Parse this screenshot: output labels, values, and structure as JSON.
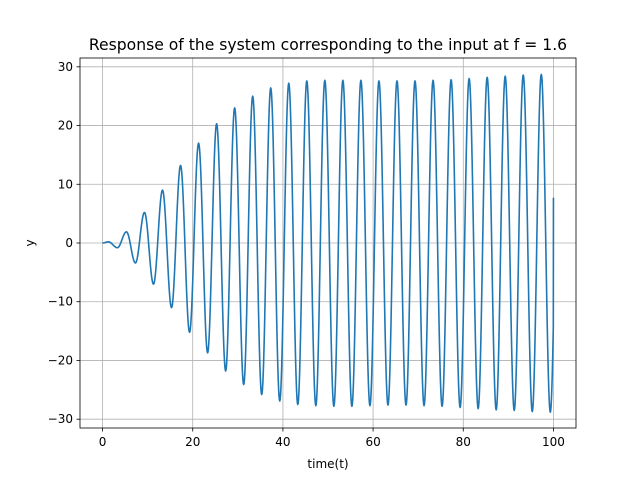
{
  "chart_data": {
    "type": "line",
    "title": "Response of the system corresponding to the input at f = 1.6",
    "xlabel": "time(t)",
    "ylabel": "y",
    "xlim": [
      -5,
      105
    ],
    "ylim": [
      -31.5,
      31.5
    ],
    "xticks": [
      0,
      20,
      40,
      60,
      80,
      100
    ],
    "yticks": [
      -30,
      -20,
      -10,
      0,
      10,
      20,
      30
    ],
    "grid": true,
    "series": [
      {
        "color": "#1f77b4",
        "x_range": [
          0,
          100
        ],
        "oscillation_period": 4.0,
        "peaks": [
          {
            "x": 1.3,
            "y": 0.2
          },
          {
            "x": 5.3,
            "y": 1.9
          },
          {
            "x": 9.3,
            "y": 5.2
          },
          {
            "x": 13.3,
            "y": 9.0
          },
          {
            "x": 17.3,
            "y": 13.2
          },
          {
            "x": 21.3,
            "y": 17.0
          },
          {
            "x": 25.3,
            "y": 20.3
          },
          {
            "x": 29.3,
            "y": 23.0
          },
          {
            "x": 33.3,
            "y": 25.0
          },
          {
            "x": 37.3,
            "y": 26.4
          },
          {
            "x": 41.3,
            "y": 27.2
          },
          {
            "x": 45.3,
            "y": 27.6
          },
          {
            "x": 49.3,
            "y": 27.7
          },
          {
            "x": 53.3,
            "y": 27.7
          },
          {
            "x": 57.3,
            "y": 27.7
          },
          {
            "x": 61.3,
            "y": 27.6
          },
          {
            "x": 65.3,
            "y": 27.6
          },
          {
            "x": 69.3,
            "y": 27.6
          },
          {
            "x": 73.3,
            "y": 27.7
          },
          {
            "x": 77.3,
            "y": 27.8
          },
          {
            "x": 81.3,
            "y": 28.0
          },
          {
            "x": 85.3,
            "y": 28.2
          },
          {
            "x": 89.3,
            "y": 28.4
          },
          {
            "x": 93.3,
            "y": 28.6
          },
          {
            "x": 97.3,
            "y": 28.7
          }
        ],
        "troughs": [
          {
            "x": 3.3,
            "y": -0.8
          },
          {
            "x": 7.3,
            "y": -3.4
          },
          {
            "x": 11.3,
            "y": -7.0
          },
          {
            "x": 15.3,
            "y": -11.0
          },
          {
            "x": 19.3,
            "y": -15.2
          },
          {
            "x": 23.3,
            "y": -18.7
          },
          {
            "x": 27.3,
            "y": -21.8
          },
          {
            "x": 31.3,
            "y": -24.1
          },
          {
            "x": 35.3,
            "y": -25.8
          },
          {
            "x": 39.3,
            "y": -26.9
          },
          {
            "x": 43.3,
            "y": -27.5
          },
          {
            "x": 47.3,
            "y": -27.7
          },
          {
            "x": 51.3,
            "y": -27.8
          },
          {
            "x": 55.3,
            "y": -27.8
          },
          {
            "x": 59.3,
            "y": -27.7
          },
          {
            "x": 63.3,
            "y": -27.6
          },
          {
            "x": 67.3,
            "y": -27.6
          },
          {
            "x": 71.3,
            "y": -27.7
          },
          {
            "x": 75.3,
            "y": -27.8
          },
          {
            "x": 79.3,
            "y": -28.0
          },
          {
            "x": 83.3,
            "y": -28.2
          },
          {
            "x": 87.3,
            "y": -28.4
          },
          {
            "x": 91.3,
            "y": -28.5
          },
          {
            "x": 95.3,
            "y": -28.7
          },
          {
            "x": 99.3,
            "y": -28.8
          }
        ],
        "end_point": {
          "x": 100,
          "y": 7.7
        }
      }
    ]
  }
}
